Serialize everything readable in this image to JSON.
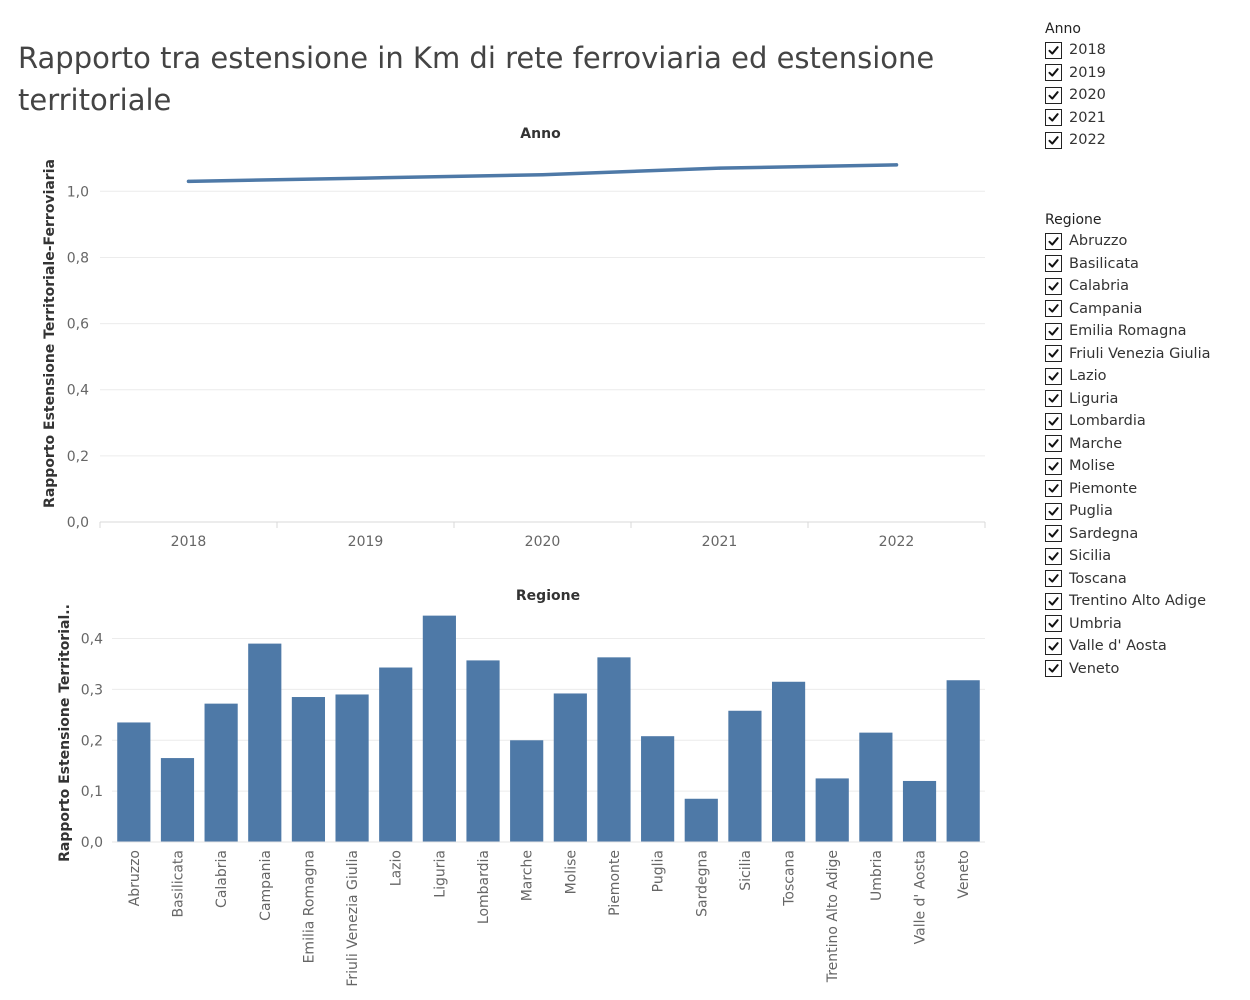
{
  "title": "Rapporto tra estensione in Km di rete ferroviaria ed estensione territoriale",
  "chart_data": [
    {
      "type": "line",
      "title": "Anno",
      "xlabel": "",
      "ylabel": "Rapporto Estensione Territoriale-Ferroviaria",
      "x": [
        "2018",
        "2019",
        "2020",
        "2021",
        "2022"
      ],
      "values": [
        1.03,
        1.04,
        1.05,
        1.07,
        1.08
      ],
      "yticks": [
        "0,0",
        "0,2",
        "0,4",
        "0,6",
        "0,8",
        "1,0"
      ],
      "ylim": [
        0,
        1.14
      ],
      "grid": true,
      "color": "#4e79a7"
    },
    {
      "type": "bar",
      "title": "Regione",
      "xlabel": "",
      "ylabel": "Rapporto Estensione Territorial..",
      "categories": [
        "Abruzzo",
        "Basilicata",
        "Calabria",
        "Campania",
        "Emilia Romagna",
        "Friuli Venezia Giulia",
        "Lazio",
        "Liguria",
        "Lombardia",
        "Marche",
        "Molise",
        "Piemonte",
        "Puglia",
        "Sardegna",
        "Sicilia",
        "Toscana",
        "Trentino Alto Adige",
        "Umbria",
        "Valle d' Aosta",
        "Veneto"
      ],
      "values": [
        0.235,
        0.165,
        0.272,
        0.39,
        0.285,
        0.29,
        0.343,
        0.445,
        0.357,
        0.2,
        0.292,
        0.363,
        0.208,
        0.085,
        0.258,
        0.315,
        0.125,
        0.215,
        0.12,
        0.318
      ],
      "yticks": [
        "0,0",
        "0,1",
        "0,2",
        "0,3",
        "0,4"
      ],
      "ylim": [
        0,
        0.46
      ],
      "grid": true,
      "color": "#4e79a7"
    }
  ],
  "filters": {
    "anno": {
      "title": "Anno",
      "items": [
        {
          "label": "2018",
          "checked": true
        },
        {
          "label": "2019",
          "checked": true
        },
        {
          "label": "2020",
          "checked": true
        },
        {
          "label": "2021",
          "checked": true
        },
        {
          "label": "2022",
          "checked": true
        }
      ]
    },
    "regione": {
      "title": "Regione",
      "items": [
        {
          "label": "Abruzzo",
          "checked": true
        },
        {
          "label": "Basilicata",
          "checked": true
        },
        {
          "label": "Calabria",
          "checked": true
        },
        {
          "label": "Campania",
          "checked": true
        },
        {
          "label": "Emilia Romagna",
          "checked": true
        },
        {
          "label": "Friuli Venezia Giulia",
          "checked": true
        },
        {
          "label": "Lazio",
          "checked": true
        },
        {
          "label": "Liguria",
          "checked": true
        },
        {
          "label": "Lombardia",
          "checked": true
        },
        {
          "label": "Marche",
          "checked": true
        },
        {
          "label": "Molise",
          "checked": true
        },
        {
          "label": "Piemonte",
          "checked": true
        },
        {
          "label": "Puglia",
          "checked": true
        },
        {
          "label": "Sardegna",
          "checked": true
        },
        {
          "label": "Sicilia",
          "checked": true
        },
        {
          "label": "Toscana",
          "checked": true
        },
        {
          "label": "Trentino Alto Adige",
          "checked": true
        },
        {
          "label": "Umbria",
          "checked": true
        },
        {
          "label": "Valle d' Aosta",
          "checked": true
        },
        {
          "label": "Veneto",
          "checked": true
        }
      ]
    }
  }
}
